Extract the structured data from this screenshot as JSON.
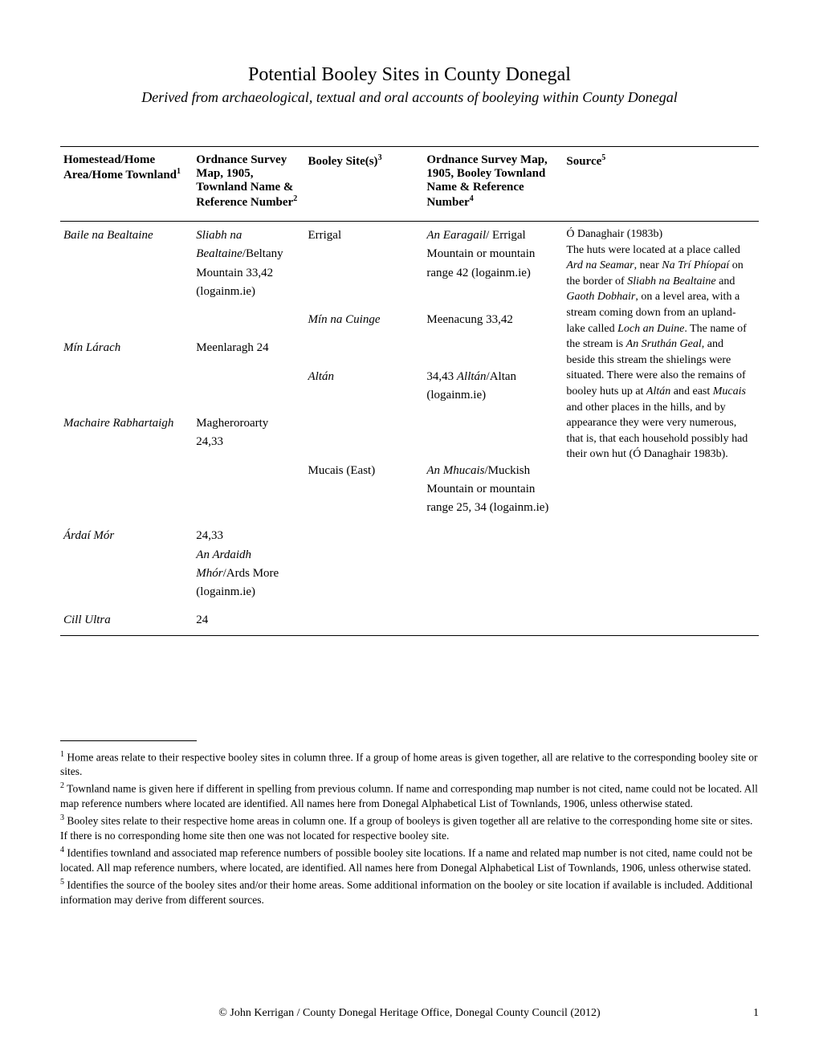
{
  "title": "Potential Booley Sites in County Donegal",
  "subtitle": "Derived from archaeological, textual and oral accounts of booleying within County Donegal",
  "table": {
    "headers": {
      "h1": "Homestead/Home Area/Home Townland",
      "h1_sup": "1",
      "h2": "Ordnance Survey Map, 1905, Townland Name & Reference Number",
      "h2_sup": "2",
      "h3": "Booley Site(s)",
      "h3_sup": "3",
      "h4": "Ordnance Survey Map, 1905, Booley Townland Name & Reference Number",
      "h4_sup": "4",
      "h5": "Source",
      "h5_sup": "5"
    },
    "source_combined": "Ó Danaghair (1983b)\nThe huts were located at a place called Ard na Seamar, near Na Trí Phíopaí on the border of Sliabh na Bealtaine and Gaoth Dobhair, on a level area, with a stream coming down from an upland-lake called Loch an Duine. The name of the stream is An Sruthán Geal, and beside this stream the shielings were situated. There were also the remains of booley huts up at Altán and east Mucais and other places in the hills, and by appearance they were very numerous, that is, that each household possibly had their own hut (Ó Danaghair 1983b).",
    "rows": [
      {
        "c1_html": "<span class=\"italic\">Baile na Bealtaine</span>",
        "c2_html": "<span class=\"italic\">Sliabh na Bealtaine</span>/Beltany Mountain 33,42 (logainm.ie)",
        "c3_html": "Errigal",
        "c4_html": "<span class=\"italic\">An Earagail</span>/ Errigal Mountain or mountain range 42 (logainm.ie)"
      },
      {
        "c1_html": "",
        "c2_html": "",
        "c3_html": "<span class=\"italic\">Mín na Cuinge</span>",
        "c4_html": "Meenacung 33,42"
      },
      {
        "c1_html": "<span class=\"italic\">Mín Lárach</span>",
        "c2_html": "Meenlaragh 24",
        "c3_html": "",
        "c4_html": ""
      },
      {
        "c1_html": "",
        "c2_html": "",
        "c3_html": "<span class=\"italic\">Altán</span>",
        "c4_html": "34,43 <span class=\"italic\">Alltán</span>/Altan (logainm.ie)"
      },
      {
        "c1_html": "<span class=\"italic\">Machaire Rabhartaigh</span>",
        "c2_html": "Magheroroarty 24,33",
        "c3_html": "",
        "c4_html": ""
      },
      {
        "c1_html": "",
        "c2_html": "",
        "c3_html": "Mucais (East)",
        "c4_html": "<span class=\"italic\">An Mhucais</span>/Muckish Mountain or mountain range 25, 34 (logainm.ie)"
      },
      {
        "c1_html": "<span class=\"italic\">Árdaí Mór</span>",
        "c2_html": "24,33<br><span class=\"italic\">An Ardaidh Mhór</span>/Ards More (logainm.ie)",
        "c3_html": "",
        "c4_html": ""
      },
      {
        "c1_html": "<span class=\"italic\">Cill Ultra</span>",
        "c2_html": "24",
        "c3_html": "",
        "c4_html": ""
      }
    ]
  },
  "footnotes": {
    "f1_sup": "1",
    "f1": "Home areas relate to their respective booley sites in column three. If a group of home areas is given together, all are relative to the corresponding booley site or sites.",
    "f2_sup": "2",
    "f2": "Townland name is given here if different in spelling from previous column. If name and corresponding map number is not cited, name could not be located. All map reference numbers where located are identified.  All names here from Donegal Alphabetical List of Townlands, 1906, unless otherwise stated.",
    "f3_sup": "3",
    "f3": "Booley sites relate to their respective home areas in column one. If a group of booleys is given together all are relative to the corresponding home site or sites. If there is no corresponding home site then one was not located for respective booley site.",
    "f4_sup": "4",
    "f4": "Identifies townland and associated map reference numbers of possible booley site locations.  If a name and related map number is not cited, name could not be located. All map reference numbers, where located, are identified. All names here from Donegal Alphabetical List of Townlands, 1906, unless otherwise stated.",
    "f5_sup": "5",
    "f5": "Identifies the source of the booley sites and/or their home areas. Some additional information on the booley or site location if available is included. Additional information may derive from different sources."
  },
  "footer": {
    "copyright": "© John Kerrigan / County Donegal Heritage Office, Donegal County Council (2012)",
    "page": "1"
  }
}
